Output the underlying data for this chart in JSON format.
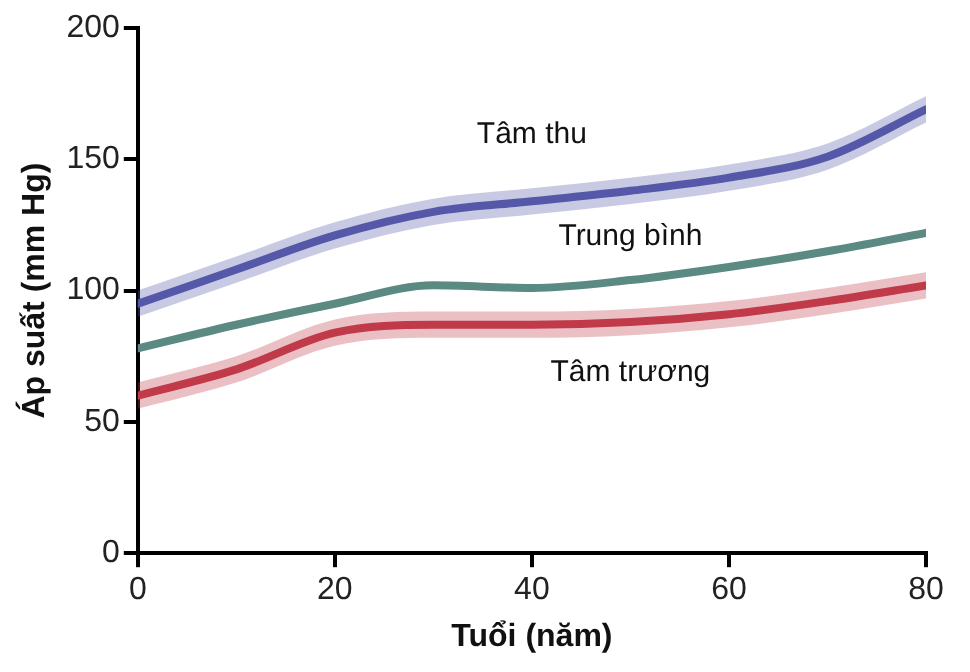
{
  "chart_data": {
    "type": "line",
    "xlabel": "Tuổi (năm)",
    "ylabel": "Áp suất (mm Hg)",
    "x": [
      0,
      10,
      20,
      30,
      40,
      50,
      60,
      70,
      80
    ],
    "xlim": [
      0,
      80
    ],
    "xticks": [
      0,
      20,
      40,
      60,
      80
    ],
    "ylim": [
      0,
      200
    ],
    "yticks": [
      0,
      50,
      100,
      150,
      200
    ],
    "grid": false,
    "legend": false,
    "marker": "none",
    "series": [
      {
        "name": "Tâm thu",
        "color": "#5558a8",
        "values": [
          95,
          108,
          121,
          130,
          134,
          138,
          143,
          151,
          169
        ],
        "lower": [
          90,
          103,
          116,
          125,
          129,
          133,
          138,
          146,
          164
        ],
        "upper": [
          100,
          113,
          126,
          135,
          139,
          143,
          148,
          156,
          174
        ]
      },
      {
        "name": "Trung bình",
        "color": "#5a8a82",
        "values": [
          78,
          87,
          95,
          102,
          101,
          104,
          109,
          115,
          122
        ]
      },
      {
        "name": "Tâm trương",
        "color": "#c03a4a",
        "values": [
          60,
          70,
          84,
          87,
          87,
          88,
          91,
          96,
          102
        ],
        "lower": [
          55,
          65,
          79,
          82,
          82,
          83,
          86,
          91,
          97
        ],
        "upper": [
          65,
          75,
          89,
          92,
          92,
          93,
          96,
          101,
          107
        ]
      }
    ]
  }
}
